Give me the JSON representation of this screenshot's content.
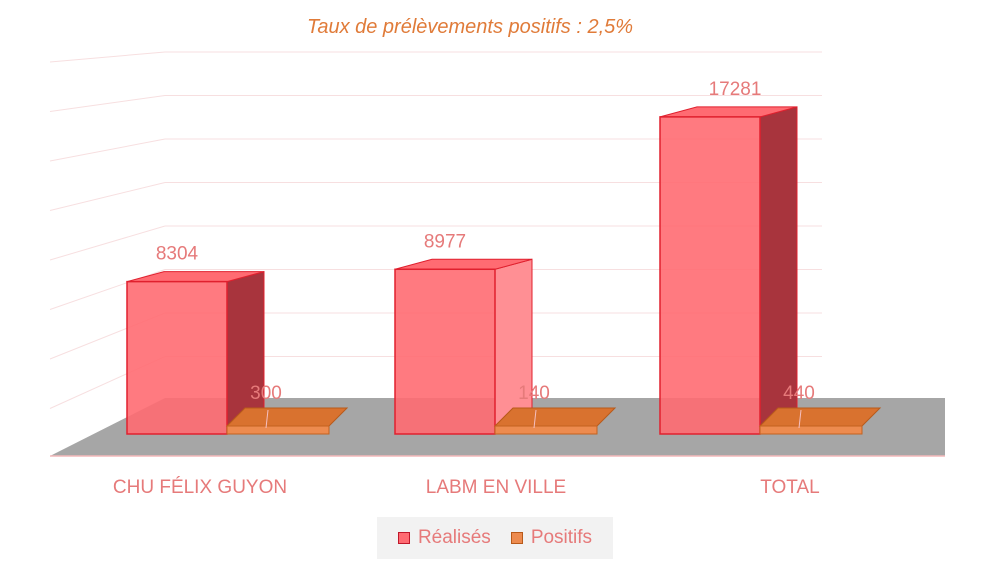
{
  "chart_data": {
    "type": "bar",
    "title": "Taux de prélèvements positifs : 2,5%",
    "categories": [
      "CHU FÉLIX GUYON",
      "LABM EN VILLE",
      "TOTAL"
    ],
    "series": [
      {
        "name": "Réalisés",
        "values": [
          8304,
          8977,
          17281
        ],
        "color": "#ff6b72"
      },
      {
        "name": "Positifs",
        "values": [
          300,
          140,
          440
        ],
        "color": "#ed8b4f"
      }
    ],
    "ylim": [
      0,
      20000
    ],
    "grid": true,
    "legend_position": "bottom",
    "style": "3d-columns"
  },
  "legend": {
    "realises": "Réalisés",
    "positifs": "Positifs"
  }
}
